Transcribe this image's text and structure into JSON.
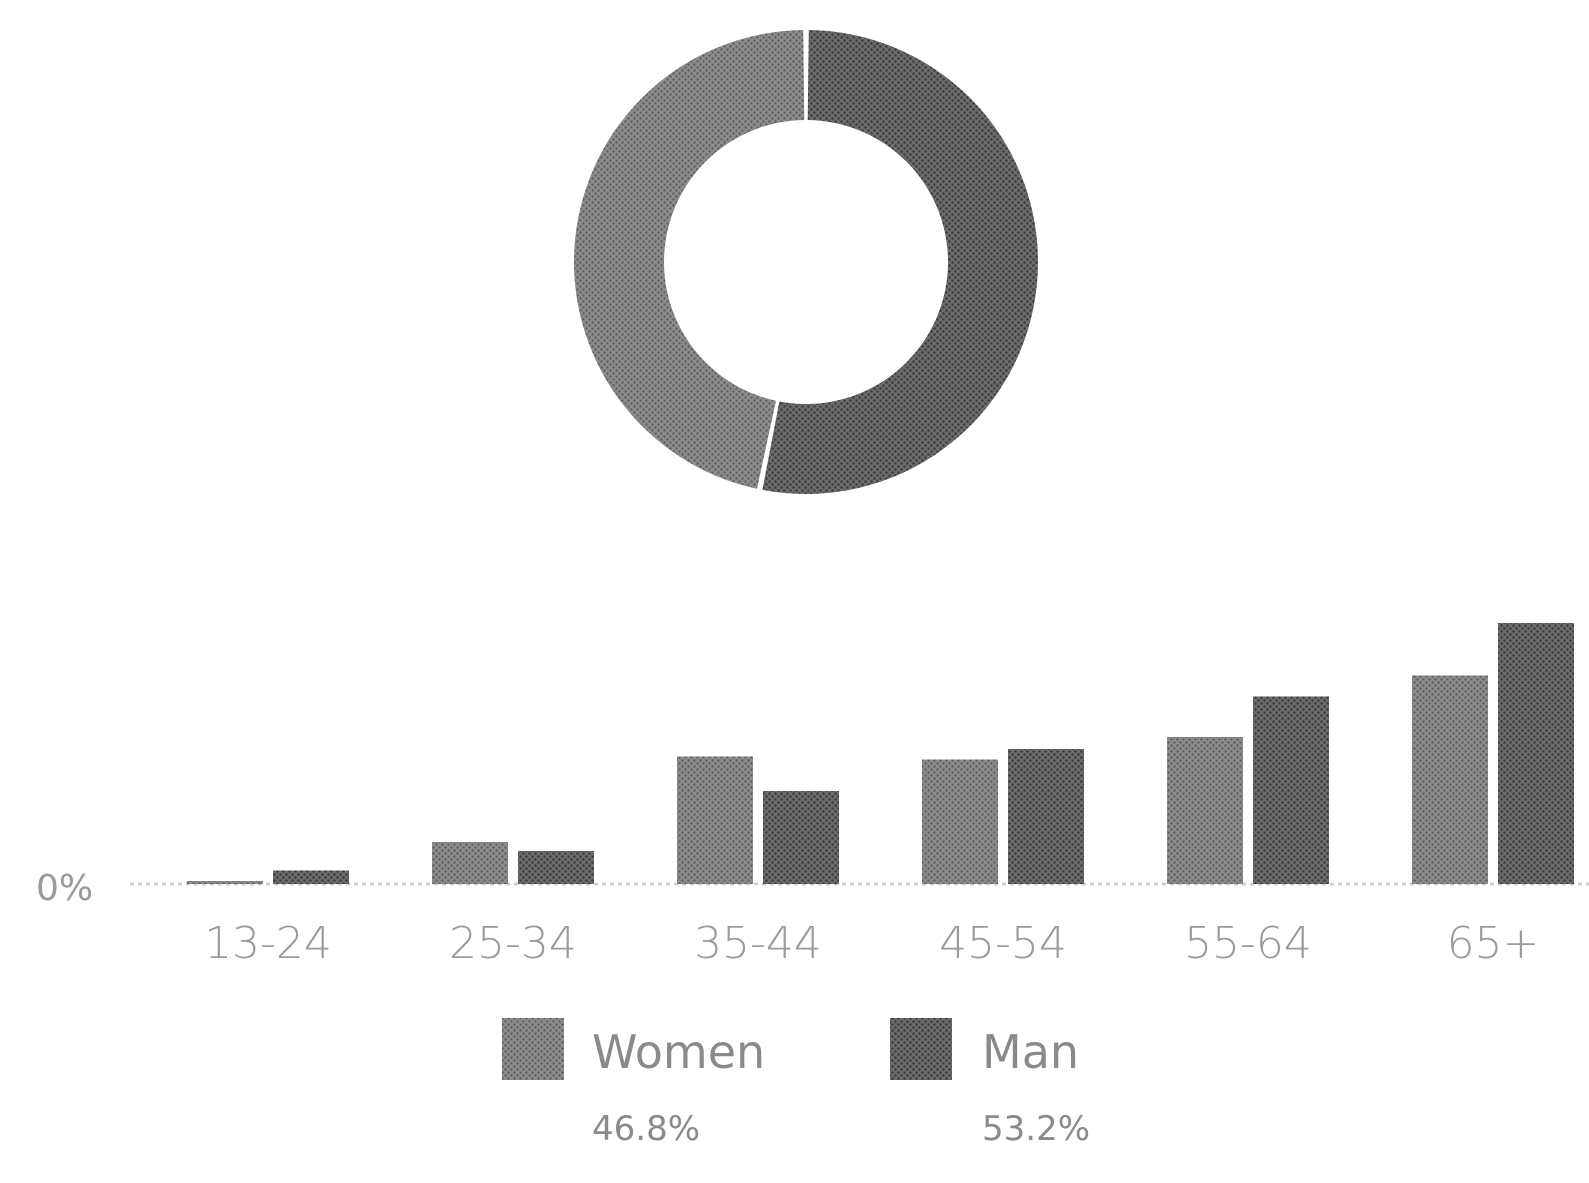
{
  "chart_data": [
    {
      "type": "pie",
      "donut": true,
      "title": "",
      "slices": [
        {
          "name": "Man",
          "value": 53.2,
          "color": "#5f5f5f"
        },
        {
          "name": "Women",
          "value": 46.8,
          "color": "#7a7a7a"
        }
      ]
    },
    {
      "type": "bar",
      "title": "",
      "xlabel": "",
      "ylabel": "",
      "y_tick_labels": [
        "0%"
      ],
      "ylim": [
        0,
        18
      ],
      "categories": [
        "13-24",
        "25-34",
        "35-44",
        "45-54",
        "55-64",
        "65+"
      ],
      "series": [
        {
          "name": "Women",
          "values": [
            0.2,
            2.8,
            8.5,
            8.3,
            9.8,
            13.9
          ],
          "color": "#7a7a7a"
        },
        {
          "name": "Man",
          "values": [
            0.9,
            2.2,
            6.2,
            9.0,
            12.5,
            17.4
          ],
          "color": "#5f5f5f"
        }
      ],
      "grid": false,
      "legend_position": "bottom",
      "legend": [
        {
          "name": "Women",
          "value_label": "46.8%",
          "color": "#7a7a7a"
        },
        {
          "name": "Man",
          "value_label": "53.2%",
          "color": "#5f5f5f"
        }
      ]
    }
  ]
}
